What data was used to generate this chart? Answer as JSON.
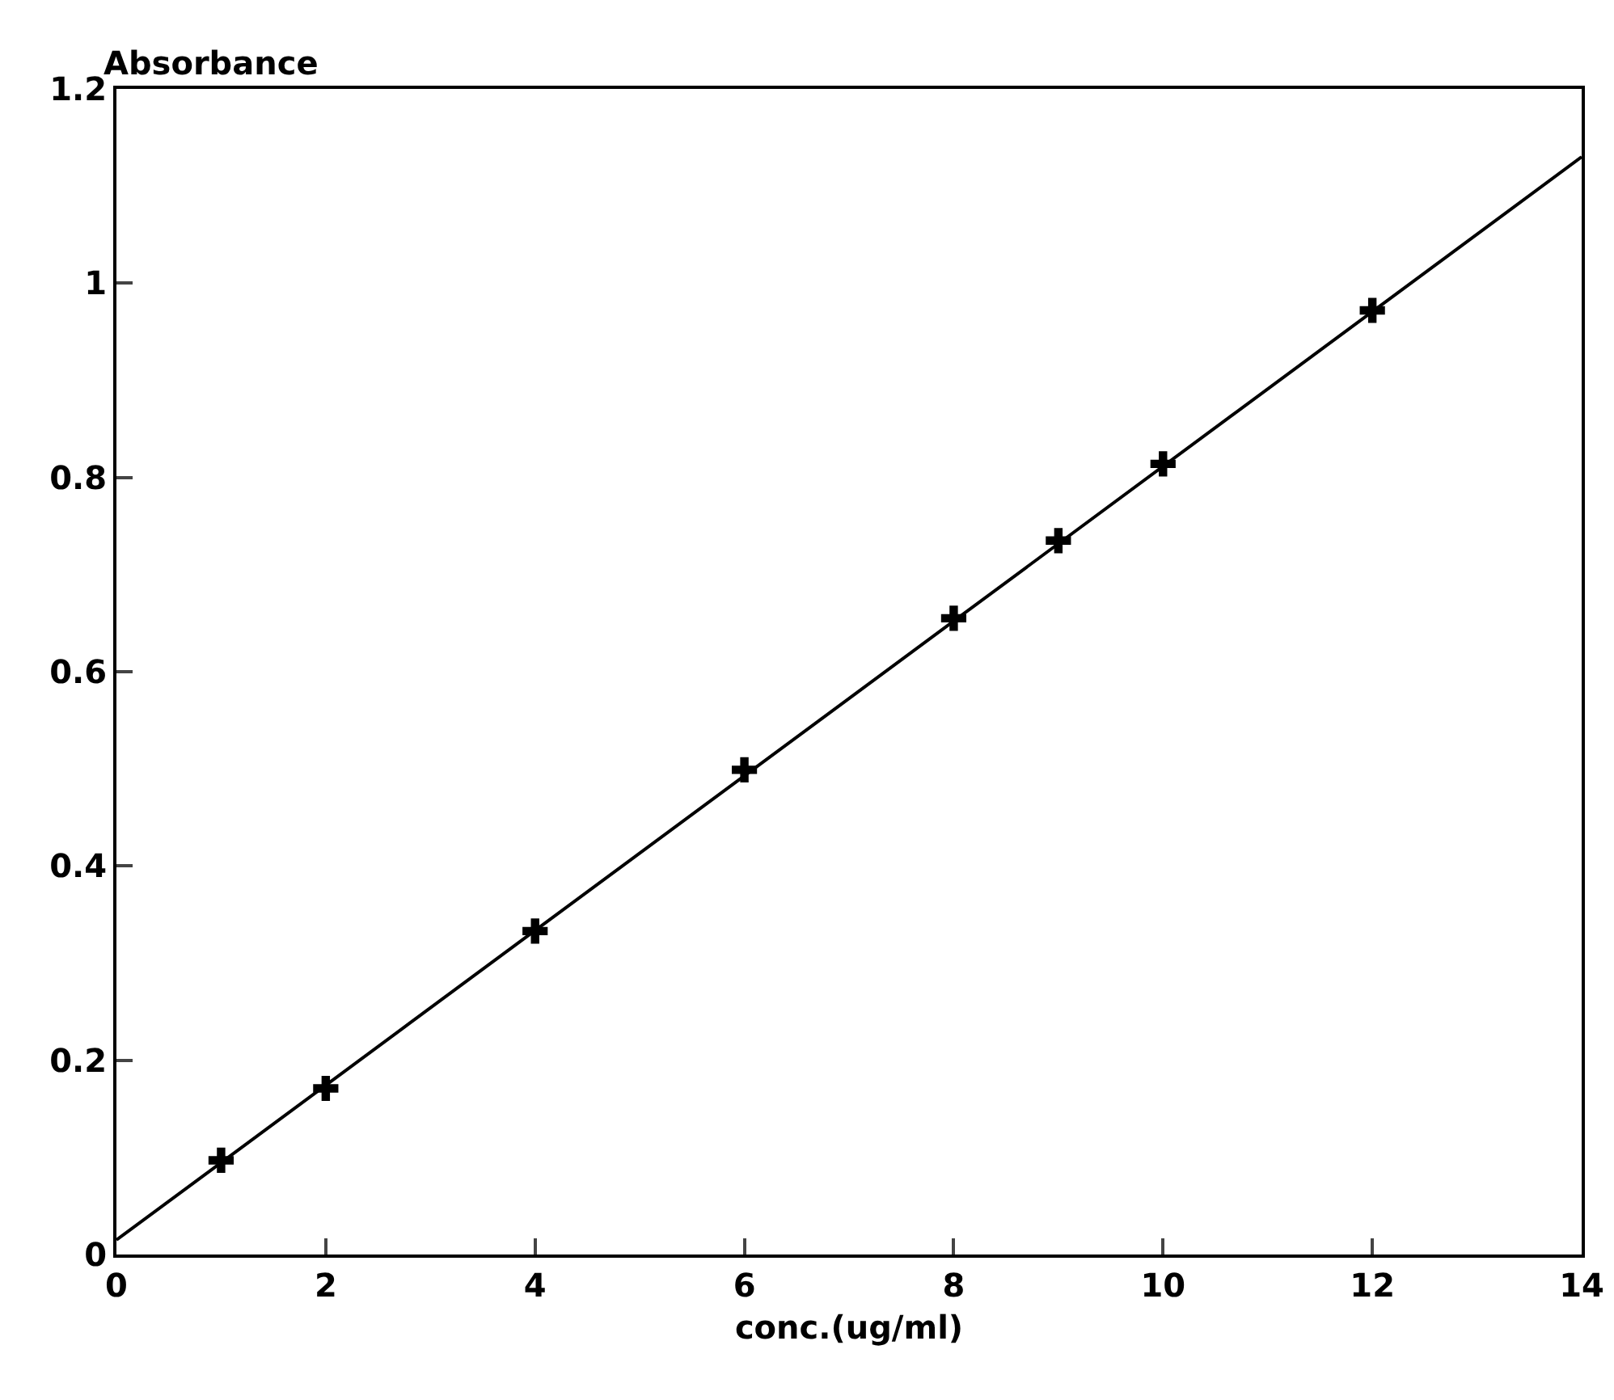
{
  "chart_data": {
    "type": "scatter",
    "xlabel": "conc.(ug/ml)",
    "ylabel": "Absorbance",
    "xlim": [
      0,
      14
    ],
    "xticks": [
      0,
      2,
      4,
      6,
      8,
      10,
      12,
      14
    ],
    "ylim": [
      0,
      1.2
    ],
    "yticks": [
      0,
      0.2,
      0.4,
      0.6,
      0.8,
      1,
      1.2
    ],
    "grid": false,
    "legend": false,
    "marker": "cross",
    "series": [
      {
        "color": "#000000",
        "x": [
          1,
          2,
          4,
          6,
          8,
          9,
          10,
          12
        ],
        "values": [
          0.097,
          0.171,
          0.333,
          0.499,
          0.655,
          0.735,
          0.814,
          0.972
        ]
      },
      {
        "type": "line",
        "color": "#000000",
        "x": [
          0,
          14
        ],
        "values": [
          0.015,
          1.13
        ],
        "line_style": "solid",
        "marker": "none"
      }
    ]
  }
}
